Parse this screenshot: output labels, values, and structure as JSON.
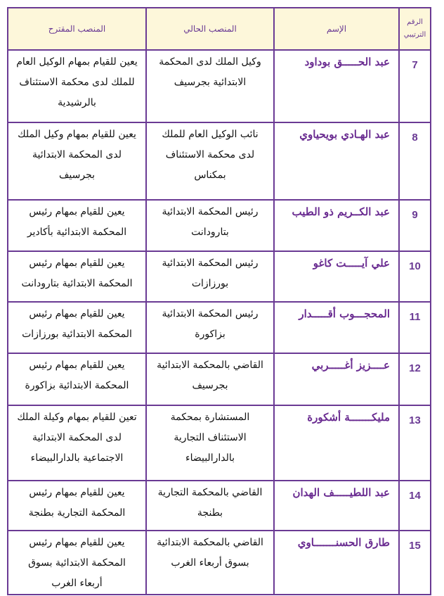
{
  "table": {
    "headers": {
      "number": "الرقم الترتيبي",
      "name": "الإسم",
      "current": "المنصب الحالي",
      "proposed": "المنصب المقترح"
    },
    "rows": [
      {
        "number": "7",
        "name": "عبد الحـــــق بوداود",
        "current": "وكيل الملك لدى المحكمة الابتدائية بجرسيف",
        "proposed": "يعين للقيام بمهام الوكيل العام للملك لدى محكمة الاستئناف بالرشيدية"
      },
      {
        "number": "8",
        "name": "عبد الهـادي بويحياوي",
        "current": "نائب الوكيل العام للملك لدى محكمة الاستئناف بمكناس",
        "proposed": "يعين للقيام بمهام وكيل الملك لدى المحكمة الابتدائية بجرسيف"
      },
      {
        "number": "9",
        "name": "عبد الكــريم ذو الطيب",
        "current": "رئيس المحكمة الابتدائية بتارودانت",
        "proposed": "يعين للقيام بمهام رئيس المحكمة الابتدائية بأكادير"
      },
      {
        "number": "10",
        "name": "علي آيـــــت كاغو",
        "current": "رئيس المحكمة الابتدائية بورزازات",
        "proposed": "يعين للقيام بمهام رئيس المحكمة الابتدائية بتارودانت"
      },
      {
        "number": "11",
        "name": "المحجـــوب أقـــــدار",
        "current": "رئيس المحكمة الابتدائية بزاكورة",
        "proposed": "يعين للقيام بمهام رئيس المحكمة الابتدائية بورزازات"
      },
      {
        "number": "12",
        "name": "عــــزيز أغـــــربي",
        "current": "القاضي بالمحكمة الابتدائية بجرسيف",
        "proposed": "يعين للقيام بمهام رئيس المحكمة الابتدائية بزاكورة"
      },
      {
        "number": "13",
        "name": "مليكـــــــة أشكورة",
        "current": "المستشارة بمحكمة الاستئناف التجارية بالدارالبيضاء",
        "proposed": "تعين للقيام بمهام وكيلة الملك لدى المحكمة الابتدائية الاجتماعية بالدارالبيضاء"
      },
      {
        "number": "14",
        "name": "عبد اللطيـــــف الهدان",
        "current": "القاضي بالمحكمة التجارية بطنجة",
        "proposed": "يعين للقيام بمهام رئيس المحكمة التجارية بطنجة"
      },
      {
        "number": "15",
        "name": "طارق الحسنـــــــاوي",
        "current": "القاضي بالمحكمة الابتدائية بسوق أربعاء الغرب",
        "proposed": "يعين للقيام بمهام رئيس المحكمة الابتدائية بسوق أربعاء الغرب"
      }
    ]
  },
  "colors": {
    "border": "#6a3a94",
    "header_bg": "#fdf7da",
    "name_text": "#6a2c91"
  }
}
